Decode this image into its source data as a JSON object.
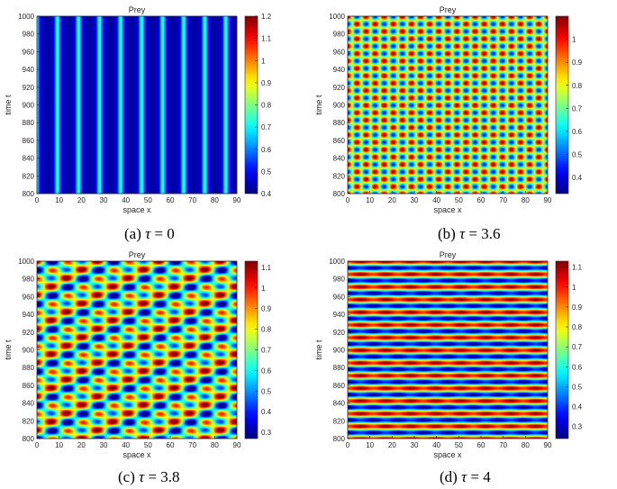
{
  "chart_data": [
    {
      "type": "heatmap",
      "title": "Prey",
      "xlabel": "space x",
      "ylabel": "time t",
      "xlim": [
        0,
        90
      ],
      "ylim": [
        800,
        1000
      ],
      "xticks": [
        "0",
        "10",
        "20",
        "30",
        "40",
        "50",
        "60",
        "70",
        "80",
        "90"
      ],
      "yticks": [
        "800",
        "820",
        "840",
        "860",
        "880",
        "900",
        "920",
        "940",
        "960",
        "980",
        "1000"
      ],
      "colorbar": {
        "min": 0.4,
        "max": 1.2,
        "ticks": [
          "0.4",
          "0.5",
          "0.6",
          "0.7",
          "0.8",
          "0.9",
          "1",
          "1.1",
          "1.2"
        ]
      },
      "pattern": {
        "mode": "stripes",
        "nx": 9.5,
        "phase": 0.3
      },
      "caption": {
        "label": "(a)",
        "symbol": "τ",
        "text": " = 0"
      }
    },
    {
      "type": "heatmap",
      "title": "Prey",
      "xlabel": "space x",
      "ylabel": "time t",
      "xlim": [
        0,
        90
      ],
      "ylim": [
        800,
        1000
      ],
      "xticks": [
        "0",
        "10",
        "20",
        "30",
        "40",
        "50",
        "60",
        "70",
        "80",
        "90"
      ],
      "yticks": [
        "800",
        "820",
        "840",
        "860",
        "880",
        "900",
        "920",
        "940",
        "960",
        "980",
        "1000"
      ],
      "colorbar": {
        "min": 0.33,
        "max": 1.1,
        "ticks": [
          "0.4",
          "0.5",
          "0.6",
          "0.7",
          "0.8",
          "0.9",
          "1"
        ]
      },
      "pattern": {
        "mode": "checker",
        "nx": 11,
        "ny": 12,
        "phase": 0.1
      },
      "caption": {
        "label": "(b)",
        "symbol": "τ",
        "text": " = 3.6"
      }
    },
    {
      "type": "heatmap",
      "title": "Prey",
      "xlabel": "space x",
      "ylabel": "time t",
      "xlim": [
        0,
        90
      ],
      "ylim": [
        800,
        1000
      ],
      "xticks": [
        "0",
        "10",
        "20",
        "30",
        "40",
        "50",
        "60",
        "70",
        "80",
        "90"
      ],
      "yticks": [
        "800",
        "820",
        "840",
        "860",
        "880",
        "900",
        "920",
        "940",
        "960",
        "980",
        "1000"
      ],
      "colorbar": {
        "min": 0.27,
        "max": 1.13,
        "ticks": [
          "0.3",
          "0.4",
          "0.5",
          "0.6",
          "0.7",
          "0.8",
          "0.9",
          "1",
          "1.1"
        ]
      },
      "pattern": {
        "mode": "hex",
        "nx": 6.5,
        "ny": 10.5,
        "phase": 0.2
      },
      "caption": {
        "label": "(c)",
        "symbol": "τ",
        "text": " = 3.8"
      }
    },
    {
      "type": "heatmap",
      "title": "Prey",
      "xlabel": "space x",
      "ylabel": "time t",
      "xlim": [
        0,
        90
      ],
      "ylim": [
        800,
        1000
      ],
      "xticks": [
        "0",
        "10",
        "20",
        "30",
        "40",
        "50",
        "60",
        "70",
        "80",
        "90"
      ],
      "yticks": [
        "800",
        "820",
        "840",
        "860",
        "880",
        "900",
        "920",
        "940",
        "960",
        "980",
        "1000"
      ],
      "colorbar": {
        "min": 0.24,
        "max": 1.13,
        "ticks": [
          "0.3",
          "0.4",
          "0.5",
          "0.6",
          "0.7",
          "0.8",
          "0.9",
          "1",
          "1.1"
        ]
      },
      "pattern": {
        "mode": "bands",
        "nx": 8,
        "ny": 14,
        "phase": 0.0
      },
      "caption": {
        "label": "(d)",
        "symbol": "τ",
        "text": " = 4"
      }
    }
  ]
}
